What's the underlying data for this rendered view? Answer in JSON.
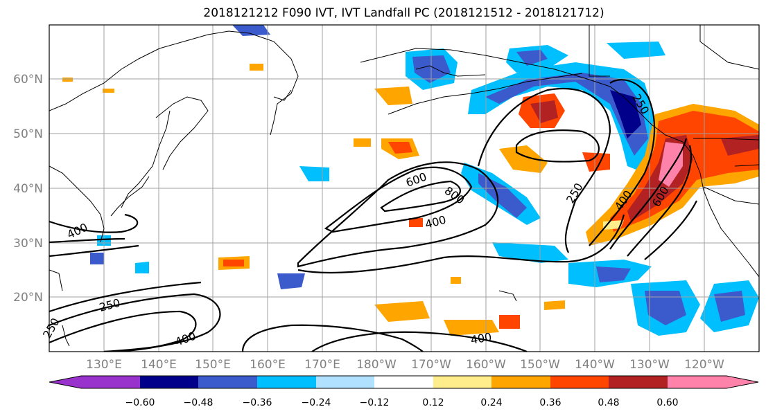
{
  "title": "2018121212 F090 IVT, IVT Landfall PC (2018121512 - 2018121712)",
  "axes": {
    "lon_labels": [
      "130°E",
      "140°E",
      "150°E",
      "160°E",
      "170°E",
      "180°W",
      "170°W",
      "160°W",
      "150°W",
      "140°W",
      "130°W",
      "120°W"
    ],
    "lat_labels": [
      "60°N",
      "50°N",
      "40°N",
      "30°N",
      "20°N"
    ]
  },
  "contour_labels": [
    "600",
    "800",
    "400",
    "250",
    "400",
    "600",
    "250",
    "400",
    "250",
    "250",
    "400",
    "400"
  ],
  "colorbar": {
    "tick_labels": [
      "−0.60",
      "−0.48",
      "−0.36",
      "−0.24",
      "−0.12",
      "0.12",
      "0.24",
      "0.36",
      "0.48",
      "0.60"
    ],
    "colors": [
      "#9932cc",
      "#00008b",
      "#3b5bcc",
      "#00bfff",
      "#b0e2ff",
      "#ffffff",
      "#ffec8b",
      "#ffa500",
      "#ff4500",
      "#b22222",
      "#ff82ab"
    ]
  },
  "colors": {
    "land_outline": "#000000",
    "grid": "#a0a0a0",
    "contour": "#000000"
  }
}
